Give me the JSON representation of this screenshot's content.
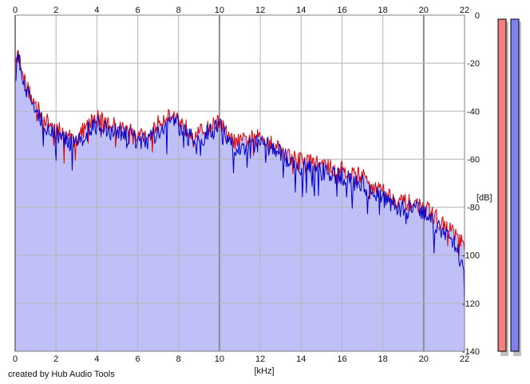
{
  "credit": "created by Hub Audio Tools",
  "chart_data": {
    "type": "area",
    "xlabel": "[kHz]",
    "ylabel": "[dB]",
    "xlim": [
      0,
      22
    ],
    "ylim": [
      -140,
      0
    ],
    "x_ticks": [
      0,
      2,
      4,
      6,
      8,
      10,
      12,
      14,
      16,
      18,
      20,
      22
    ],
    "y_ticks": [
      0,
      -20,
      -40,
      -60,
      -80,
      -100,
      -120,
      -140
    ],
    "grid": true,
    "colors": {
      "fill": "#c0c0f8",
      "series_red": "#e00000",
      "series_blue": "#0000cc",
      "grid": "#b4b4b4",
      "level_meter_red": "#f08080",
      "level_meter_blue": "#8080f0"
    },
    "series": [
      {
        "x": [
          0,
          0.1,
          0.2,
          0.35,
          0.5,
          0.7,
          0.9,
          1.2,
          1.5,
          2,
          2.5,
          3,
          3.5,
          4,
          4.5,
          5,
          5.5,
          6,
          6.5,
          7,
          7.5,
          8,
          8.5,
          9,
          9.5,
          10,
          10.5,
          11,
          11.5,
          12,
          12.5,
          13,
          13.5,
          14,
          14.5,
          15,
          15.5,
          16,
          16.5,
          17,
          17.5,
          18,
          18.5,
          19,
          19.5,
          20,
          20.5,
          21,
          21.5,
          22
        ],
        "values": [
          -24,
          -15,
          -18,
          -21,
          -29,
          -32,
          -36,
          -40,
          -44,
          -47,
          -50,
          -52,
          -46,
          -42,
          -45,
          -46,
          -48,
          -50,
          -51,
          -45,
          -41,
          -43,
          -48,
          -49,
          -47,
          -44,
          -52,
          -53,
          -51,
          -51,
          -52,
          -56,
          -59,
          -60,
          -61,
          -62,
          -64,
          -64,
          -66,
          -67,
          -71,
          -73,
          -76,
          -78,
          -78,
          -80,
          -83,
          -88,
          -90,
          -97
        ]
      },
      {
        "x": [
          0,
          0.1,
          0.2,
          0.35,
          0.5,
          0.7,
          0.9,
          1.2,
          1.5,
          2,
          2.5,
          3,
          3.5,
          4,
          4.5,
          5,
          5.5,
          6,
          6.5,
          7,
          7.5,
          8,
          8.5,
          9,
          9.5,
          10,
          10.5,
          11,
          11.5,
          12,
          12.5,
          13,
          13.5,
          14,
          14.5,
          15,
          15.5,
          16,
          16.5,
          17,
          17.5,
          18,
          18.5,
          19,
          19.5,
          20,
          20.5,
          21,
          21.5,
          22
        ],
        "values": [
          -27,
          -18,
          -20,
          -24,
          -31,
          -34,
          -38,
          -42,
          -46,
          -49,
          -52,
          -54,
          -49,
          -45,
          -48,
          -49,
          -50,
          -52,
          -53,
          -48,
          -44,
          -46,
          -51,
          -52,
          -49,
          -46,
          -54,
          -56,
          -53,
          -54,
          -55,
          -58,
          -61,
          -63,
          -64,
          -65,
          -66,
          -67,
          -69,
          -70,
          -74,
          -76,
          -79,
          -81,
          -81,
          -83,
          -86,
          -91,
          -94,
          -108
        ]
      }
    ],
    "level_meters": 2
  }
}
